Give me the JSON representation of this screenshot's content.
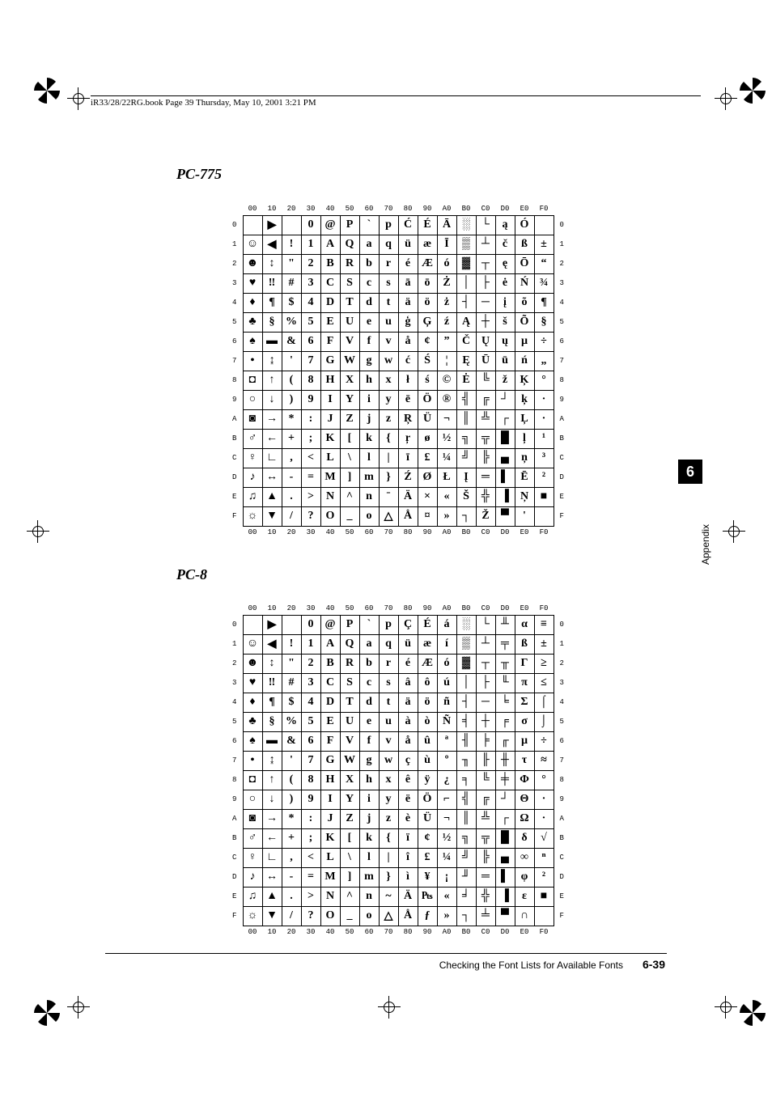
{
  "header": {
    "text": "iR33/28/22RG.book  Page 39  Thursday, May 10, 2001  3:21 PM"
  },
  "titles": {
    "pc775": "PC-775",
    "pc8": "PC-8"
  },
  "sidebar": {
    "chapter": "6",
    "label": "Appendix"
  },
  "footer": {
    "text": "Checking the Font Lists for Available Fonts",
    "page": "6-39"
  },
  "columns": [
    "00",
    "10",
    "20",
    "30",
    "40",
    "50",
    "60",
    "70",
    "80",
    "90",
    "A0",
    "B0",
    "C0",
    "D0",
    "E0",
    "F0"
  ],
  "rows": [
    "0",
    "1",
    "2",
    "3",
    "4",
    "5",
    "6",
    "7",
    "8",
    "9",
    "A",
    "B",
    "C",
    "D",
    "E",
    "F"
  ],
  "table775": [
    [
      "",
      "▶",
      "",
      "0",
      "@",
      "P",
      "`",
      "p",
      "Ć",
      "É",
      "Ā",
      "░",
      "└",
      "ą",
      "Ó",
      "­"
    ],
    [
      "☺",
      "◀",
      "!",
      "1",
      "A",
      "Q",
      "a",
      "q",
      "ü",
      "æ",
      "Ī",
      "▒",
      "┴",
      "č",
      "ß",
      "±"
    ],
    [
      "☻",
      "↕",
      "\"",
      "2",
      "B",
      "R",
      "b",
      "r",
      "é",
      "Æ",
      "ó",
      "▓",
      "┬",
      "ę",
      "Ō",
      "“"
    ],
    [
      "♥",
      "‼",
      "#",
      "3",
      "C",
      "S",
      "c",
      "s",
      "ā",
      "ō",
      "Ż",
      "│",
      "├",
      "ė",
      "Ń",
      "¾"
    ],
    [
      "♦",
      "¶",
      "$",
      "4",
      "D",
      "T",
      "d",
      "t",
      "ä",
      "ö",
      "ż",
      "┤",
      "─",
      "į",
      "õ",
      "¶"
    ],
    [
      "♣",
      "§",
      "%",
      "5",
      "E",
      "U",
      "e",
      "u",
      "ģ",
      "Ģ",
      "ź",
      "Ą",
      "┼",
      "š",
      "Õ",
      "§"
    ],
    [
      "♠",
      "▬",
      "&",
      "6",
      "F",
      "V",
      "f",
      "v",
      "å",
      "¢",
      "”",
      "Č",
      "Ų",
      "ų",
      "µ",
      "÷"
    ],
    [
      "•",
      "↨",
      "'",
      "7",
      "G",
      "W",
      "g",
      "w",
      "ć",
      "Ś",
      "¦",
      "Ę",
      "Ū",
      "ū",
      "ń",
      "„"
    ],
    [
      "◘",
      "↑",
      "(",
      "8",
      "H",
      "X",
      "h",
      "x",
      "ł",
      "ś",
      "©",
      "Ė",
      "╚",
      "ž",
      "Ķ",
      "°"
    ],
    [
      "○",
      "↓",
      ")",
      "9",
      "I",
      "Y",
      "i",
      "y",
      "ē",
      "Ö",
      "®",
      "╣",
      "╔",
      "┘",
      "ķ",
      "∙"
    ],
    [
      "◙",
      "→",
      "*",
      ":",
      "J",
      "Z",
      "j",
      "z",
      "Ŗ",
      "Ü",
      "¬",
      "║",
      "╩",
      "┌",
      "Ļ",
      "·"
    ],
    [
      "♂",
      "←",
      "+",
      ";",
      "K",
      "[",
      "k",
      "{",
      "ŗ",
      "ø",
      "½",
      "╗",
      "╦",
      "█",
      "ļ",
      "¹"
    ],
    [
      "♀",
      "∟",
      ",",
      "<",
      "L",
      "\\",
      "l",
      "|",
      "ī",
      "£",
      "¼",
      "╝",
      "╠",
      "▄",
      "ņ",
      "³"
    ],
    [
      "♪",
      "↔",
      "-",
      "=",
      "M",
      "]",
      "m",
      "}",
      "Ź",
      "Ø",
      "Ł",
      "Į",
      "═",
      "▌",
      "Ē",
      "²"
    ],
    [
      "♫",
      "▲",
      ".",
      ">",
      "N",
      "^",
      "n",
      "ˉ",
      "Ä",
      "×",
      "«",
      "Š",
      "╬",
      "▐",
      "Ņ",
      "■"
    ],
    [
      "☼",
      "▼",
      "/",
      "?",
      "O",
      "_",
      "o",
      "△",
      "Å",
      "¤",
      "»",
      "┐",
      "Ž",
      "▀",
      "'",
      ""
    ]
  ],
  "table8": [
    [
      "",
      "▶",
      "",
      "0",
      "@",
      "P",
      "`",
      "p",
      "Ç",
      "É",
      "á",
      "░",
      "└",
      "╨",
      "α",
      "≡"
    ],
    [
      "☺",
      "◀",
      "!",
      "1",
      "A",
      "Q",
      "a",
      "q",
      "ü",
      "æ",
      "í",
      "▒",
      "┴",
      "╤",
      "ß",
      "±"
    ],
    [
      "☻",
      "↕",
      "\"",
      "2",
      "B",
      "R",
      "b",
      "r",
      "é",
      "Æ",
      "ó",
      "▓",
      "┬",
      "╥",
      "Γ",
      "≥"
    ],
    [
      "♥",
      "‼",
      "#",
      "3",
      "C",
      "S",
      "c",
      "s",
      "â",
      "ô",
      "ú",
      "│",
      "├",
      "╙",
      "π",
      "≤"
    ],
    [
      "♦",
      "¶",
      "$",
      "4",
      "D",
      "T",
      "d",
      "t",
      "ä",
      "ö",
      "ñ",
      "┤",
      "─",
      "╘",
      "Σ",
      "⌠"
    ],
    [
      "♣",
      "§",
      "%",
      "5",
      "E",
      "U",
      "e",
      "u",
      "à",
      "ò",
      "Ñ",
      "╡",
      "┼",
      "╒",
      "σ",
      "⌡"
    ],
    [
      "♠",
      "▬",
      "&",
      "6",
      "F",
      "V",
      "f",
      "v",
      "å",
      "û",
      "ª",
      "╢",
      "╞",
      "╓",
      "µ",
      "÷"
    ],
    [
      "•",
      "↨",
      "'",
      "7",
      "G",
      "W",
      "g",
      "w",
      "ç",
      "ù",
      "º",
      "╖",
      "╟",
      "╫",
      "τ",
      "≈"
    ],
    [
      "◘",
      "↑",
      "(",
      "8",
      "H",
      "X",
      "h",
      "x",
      "ê",
      "ÿ",
      "¿",
      "╕",
      "╚",
      "╪",
      "Φ",
      "°"
    ],
    [
      "○",
      "↓",
      ")",
      "9",
      "I",
      "Y",
      "i",
      "y",
      "ë",
      "Ö",
      "⌐",
      "╣",
      "╔",
      "┘",
      "Θ",
      "∙"
    ],
    [
      "◙",
      "→",
      "*",
      ":",
      "J",
      "Z",
      "j",
      "z",
      "è",
      "Ü",
      "¬",
      "║",
      "╩",
      "┌",
      "Ω",
      "·"
    ],
    [
      "♂",
      "←",
      "+",
      ";",
      "K",
      "[",
      "k",
      "{",
      "ï",
      "¢",
      "½",
      "╗",
      "╦",
      "█",
      "δ",
      "√"
    ],
    [
      "♀",
      "∟",
      ",",
      "<",
      "L",
      "\\",
      "l",
      "|",
      "î",
      "£",
      "¼",
      "╝",
      "╠",
      "▄",
      "∞",
      "ⁿ"
    ],
    [
      "♪",
      "↔",
      "-",
      "=",
      "M",
      "]",
      "m",
      "}",
      "ì",
      "¥",
      "¡",
      "╜",
      "═",
      "▌",
      "φ",
      "²"
    ],
    [
      "♫",
      "▲",
      ".",
      ">",
      "N",
      "^",
      "n",
      "~",
      "Ä",
      "₧",
      "«",
      "╛",
      "╬",
      "▐",
      "ε",
      "■"
    ],
    [
      "☼",
      "▼",
      "/",
      "?",
      "O",
      "_",
      "o",
      "△",
      "Å",
      "ƒ",
      "»",
      "┐",
      "╧",
      "▀",
      "∩",
      ""
    ]
  ]
}
